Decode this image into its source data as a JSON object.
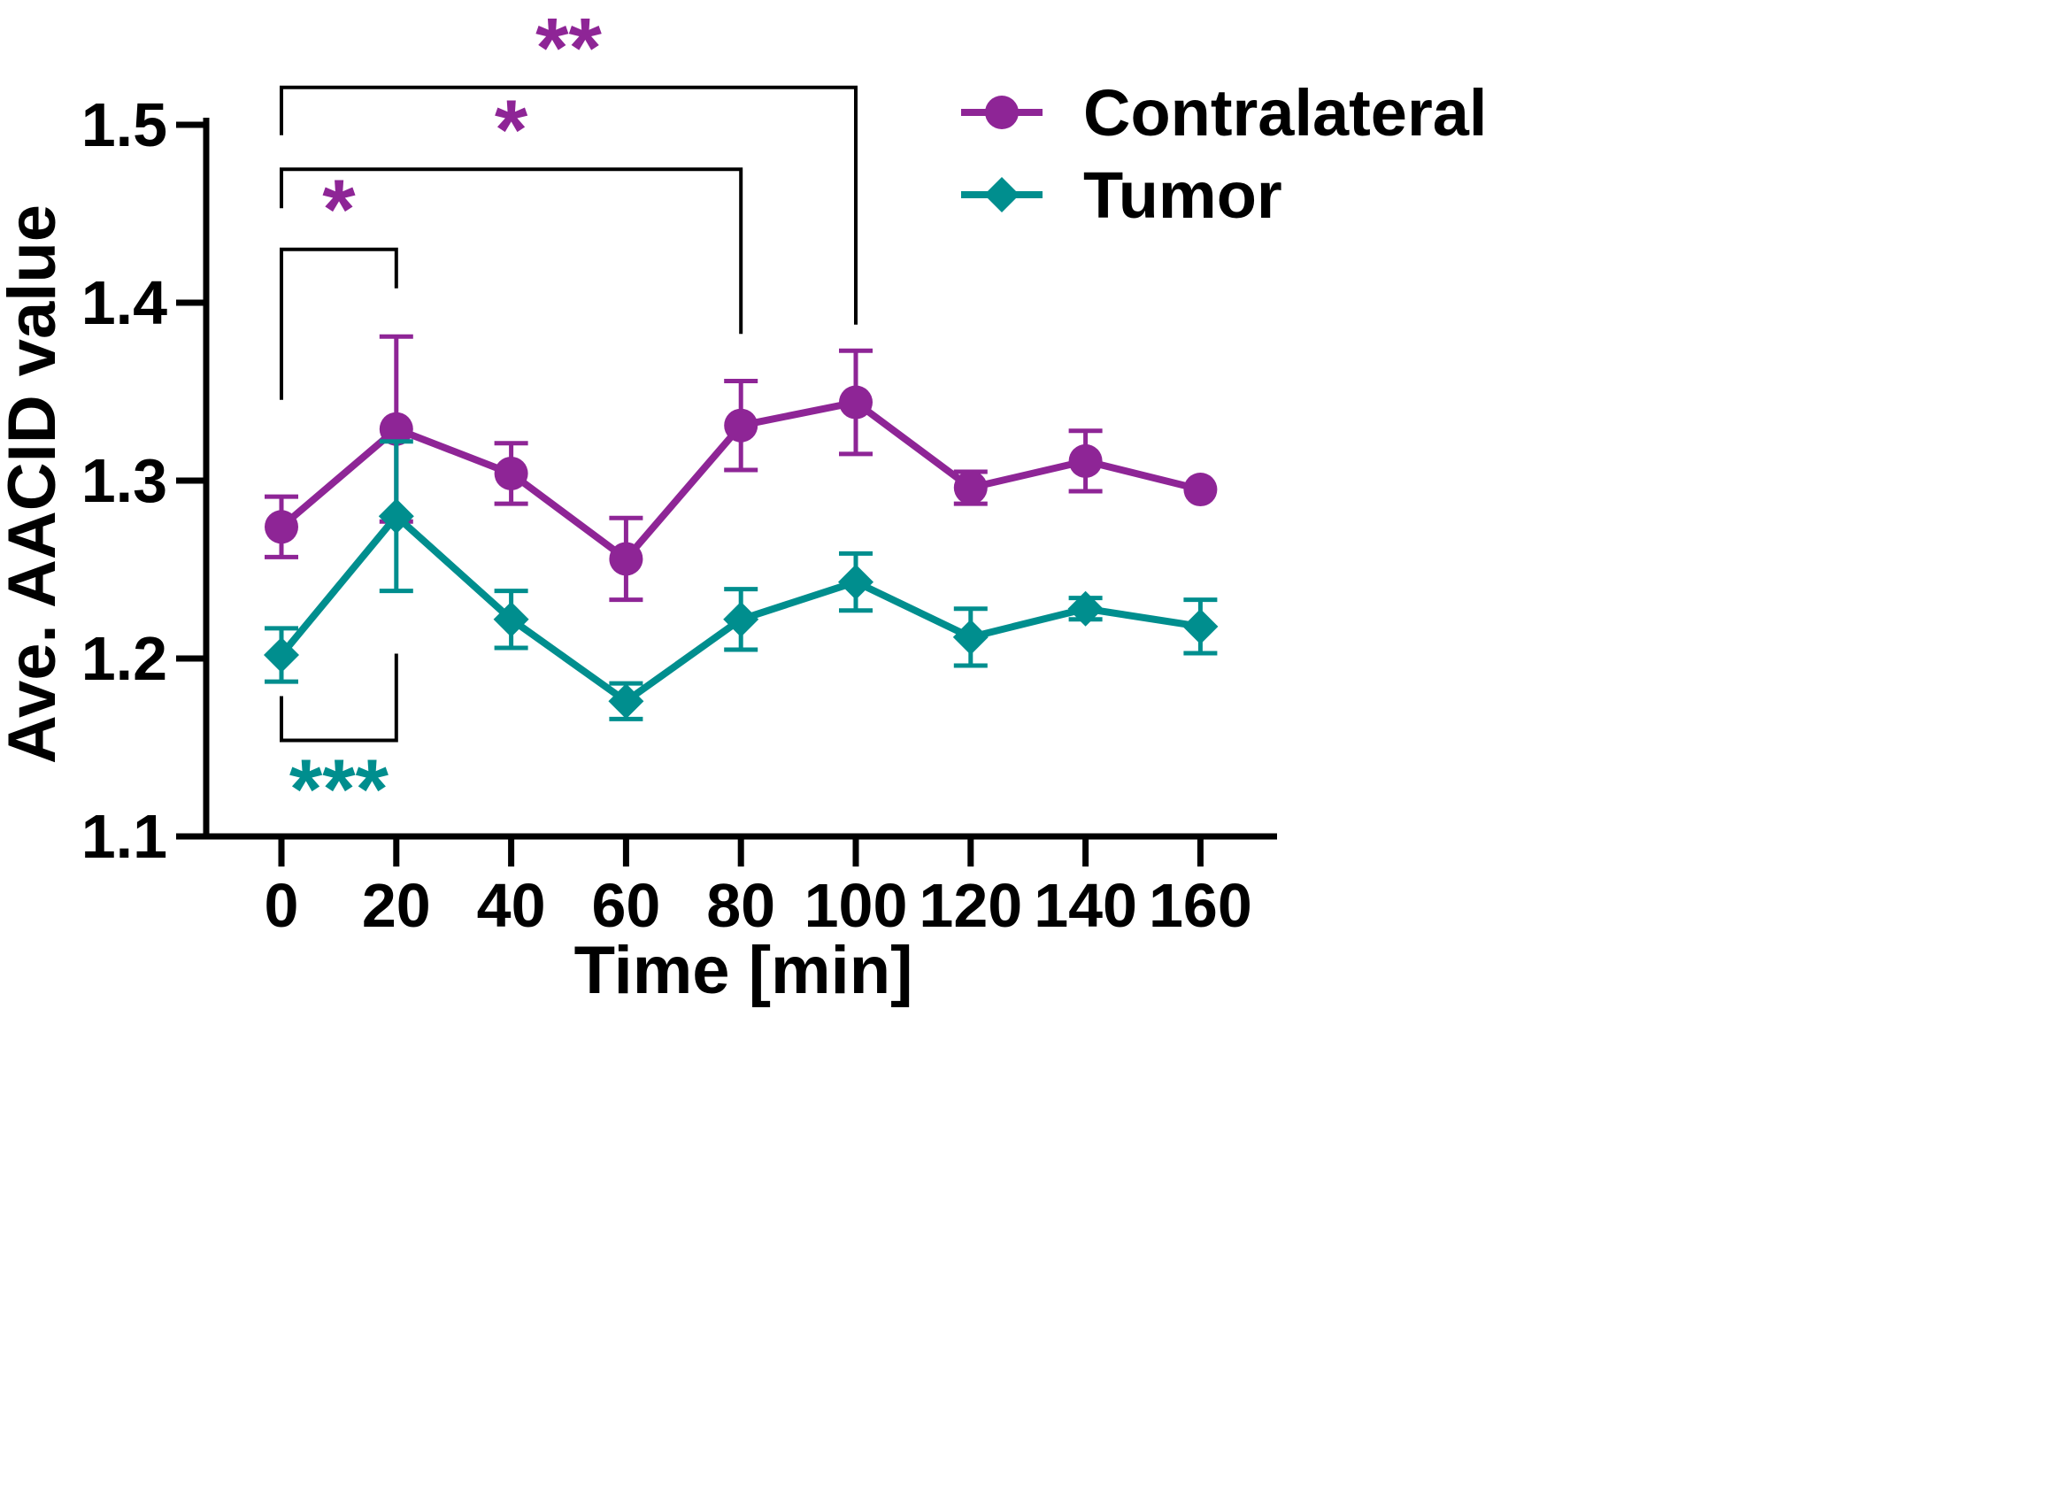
{
  "chart_data": {
    "type": "line",
    "title": "",
    "xlabel": "Time [min]",
    "ylabel": "Ave. AACID value",
    "x": [
      0,
      20,
      40,
      60,
      80,
      100,
      120,
      140,
      160
    ],
    "x_tick_labels": [
      "0",
      "20",
      "40",
      "60",
      "80",
      "100",
      "120",
      "140",
      "160"
    ],
    "y_ticks": [
      1.1,
      1.2,
      1.3,
      1.4,
      1.5
    ],
    "y_tick_labels": [
      "1.1",
      "1.2",
      "1.3",
      "1.4",
      "1.5"
    ],
    "xlim": [
      -13,
      173
    ],
    "ylim": [
      1.1,
      1.5
    ],
    "grid": false,
    "legend_position": "top-right",
    "series": [
      {
        "name": "Contralateral",
        "color": "#8E2596",
        "marker": "circle",
        "values": [
          1.274,
          1.329,
          1.304,
          1.256,
          1.331,
          1.344,
          1.296,
          1.311,
          1.295
        ],
        "errors": [
          0.017,
          0.052,
          0.017,
          0.023,
          0.025,
          0.029,
          0.009,
          0.017,
          0.0
        ]
      },
      {
        "name": "Tumor",
        "color": "#008E8E",
        "marker": "diamond",
        "values": [
          1.202,
          1.28,
          1.222,
          1.176,
          1.222,
          1.243,
          1.212,
          1.228,
          1.218
        ],
        "errors": [
          0.015,
          0.042,
          0.016,
          0.01,
          0.017,
          0.016,
          0.016,
          0.006,
          0.015
        ]
      }
    ],
    "significance": [
      {
        "label": "*",
        "color": "#8E2596",
        "from_x": 0,
        "to_x": 20,
        "level": 1.43,
        "side": "above"
      },
      {
        "label": "*",
        "color": "#8E2596",
        "from_x": 0,
        "to_x": 80,
        "level": 1.475,
        "side": "above"
      },
      {
        "label": "**",
        "color": "#8E2596",
        "from_x": 0,
        "to_x": 100,
        "level": 1.521,
        "side": "above"
      },
      {
        "label": "***",
        "color": "#008E8E",
        "from_x": 0,
        "to_x": 20,
        "level": 1.154,
        "side": "below"
      }
    ]
  }
}
